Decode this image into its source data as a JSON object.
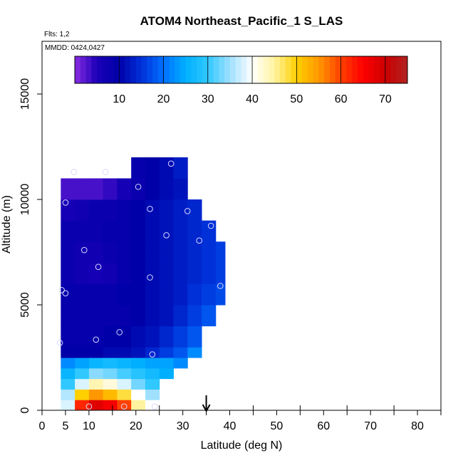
{
  "chart_data": {
    "type": "heatmap",
    "title": "ATOM4 Northeast_Pacific_1 S_LAS",
    "flights_text": "Flts: 1,2",
    "dates_text": "MMDD: 0424,0427",
    "xlabel": "Latitude (deg N)",
    "ylabel": "Altitude (m)",
    "xlim": [
      0,
      85
    ],
    "ylim": [
      0,
      17500
    ],
    "x_ticks": [
      0,
      5,
      10,
      20,
      30,
      40,
      50,
      60,
      70,
      80
    ],
    "y_ticks": [
      0,
      5000,
      10000,
      15000
    ],
    "minor_x_ticks": [
      15,
      25,
      35,
      45,
      55,
      65,
      75,
      85
    ],
    "colorbar": {
      "min": 0,
      "max": 75,
      "ticks": [
        10,
        20,
        30,
        40,
        50,
        60,
        70
      ],
      "stops": [
        {
          "v": 0,
          "c": "#8a2be2"
        },
        {
          "v": 5,
          "c": "#1a00b8"
        },
        {
          "v": 10,
          "c": "#0000a8"
        },
        {
          "v": 15,
          "c": "#0030d8"
        },
        {
          "v": 20,
          "c": "#0070ff"
        },
        {
          "v": 25,
          "c": "#00b0ff"
        },
        {
          "v": 30,
          "c": "#30c8ff"
        },
        {
          "v": 35,
          "c": "#a0e0ff"
        },
        {
          "v": 40,
          "c": "#ffffff"
        },
        {
          "v": 45,
          "c": "#fff3a0"
        },
        {
          "v": 50,
          "c": "#ffd000"
        },
        {
          "v": 55,
          "c": "#ff9800"
        },
        {
          "v": 60,
          "c": "#ff4000"
        },
        {
          "v": 65,
          "c": "#ff0000"
        },
        {
          "v": 70,
          "c": "#cc0000"
        },
        {
          "v": 75,
          "c": "#b22222"
        }
      ]
    },
    "field": {
      "lat_bins": [
        [
          4,
          7
        ],
        [
          7,
          10
        ],
        [
          10,
          13
        ],
        [
          13,
          16
        ],
        [
          16,
          19
        ],
        [
          19,
          22
        ],
        [
          22,
          25
        ],
        [
          25,
          28
        ],
        [
          28,
          31
        ],
        [
          31,
          34
        ],
        [
          34,
          37
        ],
        [
          37,
          39
        ]
      ],
      "alt_bins": [
        [
          0,
          500
        ],
        [
          500,
          1000
        ],
        [
          1000,
          1500
        ],
        [
          1500,
          2000
        ],
        [
          2000,
          2500
        ],
        [
          2500,
          3000
        ],
        [
          3000,
          4000
        ],
        [
          4000,
          5000
        ],
        [
          5000,
          6000
        ],
        [
          6000,
          7000
        ],
        [
          7000,
          8000
        ],
        [
          8000,
          9000
        ],
        [
          9000,
          10000
        ],
        [
          10000,
          11000
        ],
        [
          11000,
          12000
        ]
      ],
      "values": [
        [
          38,
          62,
          68,
          66,
          60,
          45,
          40,
          null,
          null,
          null,
          null,
          null
        ],
        [
          36,
          50,
          55,
          52,
          48,
          40,
          35,
          null,
          null,
          null,
          null,
          null
        ],
        [
          30,
          38,
          44,
          42,
          38,
          33,
          30,
          null,
          null,
          null,
          null,
          null
        ],
        [
          26,
          30,
          34,
          33,
          31,
          29,
          27,
          25,
          null,
          null,
          null,
          null
        ],
        [
          22,
          24,
          26,
          27,
          26,
          25,
          24,
          24,
          22,
          null,
          null,
          null
        ],
        [
          10,
          10,
          10,
          11,
          11,
          12,
          14,
          16,
          18,
          22,
          null,
          null
        ],
        [
          9,
          9,
          9,
          10,
          10,
          11,
          12,
          14,
          16,
          18,
          null,
          null
        ],
        [
          9,
          9,
          9,
          9,
          9,
          10,
          11,
          12,
          14,
          16,
          18,
          null
        ],
        [
          9,
          9,
          9,
          9,
          10,
          10,
          11,
          12,
          13,
          15,
          16,
          17
        ],
        [
          8,
          7,
          6,
          7,
          9,
          10,
          11,
          12,
          13,
          14,
          15,
          16
        ],
        [
          8,
          7,
          7,
          8,
          9,
          10,
          11,
          12,
          13,
          14,
          15,
          16
        ],
        [
          8,
          8,
          8,
          9,
          9,
          10,
          11,
          12,
          13,
          14,
          15,
          null
        ],
        [
          6,
          7,
          8,
          8,
          9,
          10,
          11,
          12,
          13,
          14,
          null,
          null
        ],
        [
          3,
          3,
          3,
          4,
          6,
          8,
          10,
          11,
          12,
          null,
          null,
          null
        ],
        [
          null,
          null,
          null,
          null,
          null,
          9,
          10,
          11,
          13,
          null,
          null,
          null
        ]
      ]
    },
    "points": [
      {
        "lat": 6.8,
        "alt": 11300
      },
      {
        "lat": 13.5,
        "alt": 11300
      },
      {
        "lat": 27.5,
        "alt": 11700
      },
      {
        "lat": 20.5,
        "alt": 10600
      },
      {
        "lat": 5,
        "alt": 9850
      },
      {
        "lat": 23,
        "alt": 9550
      },
      {
        "lat": 31,
        "alt": 9450
      },
      {
        "lat": 36,
        "alt": 8750
      },
      {
        "lat": 26.5,
        "alt": 8300
      },
      {
        "lat": 33.5,
        "alt": 8050
      },
      {
        "lat": 9,
        "alt": 7600
      },
      {
        "lat": 12,
        "alt": 6800
      },
      {
        "lat": 23,
        "alt": 6300
      },
      {
        "lat": 38,
        "alt": 5900
      },
      {
        "lat": 4.2,
        "alt": 5700
      },
      {
        "lat": 5,
        "alt": 5550
      },
      {
        "lat": 16.5,
        "alt": 3700
      },
      {
        "lat": 11.5,
        "alt": 3350
      },
      {
        "lat": 3.8,
        "alt": 3200
      },
      {
        "lat": 23.5,
        "alt": 2650
      },
      {
        "lat": 10,
        "alt": 180
      },
      {
        "lat": 17.5,
        "alt": 180
      },
      {
        "lat": 24,
        "alt": 180
      }
    ],
    "marker_lat": 35,
    "colors": {
      "points": "#d8d8ff",
      "frame": "#000000",
      "background": "#ffffff"
    }
  }
}
